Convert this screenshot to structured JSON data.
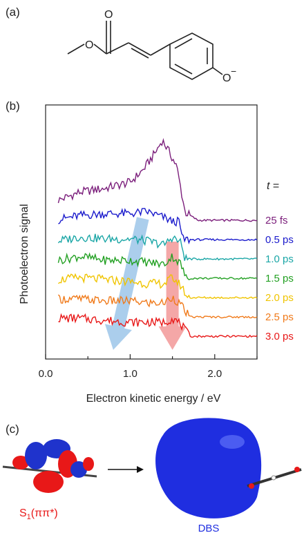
{
  "panels": {
    "a": "(a)",
    "b": "(b)",
    "c": "(c)"
  },
  "structure": {
    "o_minus_sup": "−",
    "atoms": [
      "O",
      "O",
      "O"
    ]
  },
  "chart_data": {
    "type": "line",
    "xlabel": "Electron kinetic energy / eV",
    "ylabel": "Photoelectron signal",
    "xlim": [
      0.0,
      2.5
    ],
    "xticks": [
      "0.0",
      "1.0",
      "2.0"
    ],
    "legend_title_italic": "t",
    "legend_title_rest": " =",
    "grid": false,
    "series": [
      {
        "name": "25 fs",
        "color": "#7b1e7b",
        "offset": 6,
        "x": [
          0.15,
          0.4,
          0.7,
          1.0,
          1.15,
          1.3,
          1.38,
          1.45,
          1.55,
          1.65,
          1.8,
          2.1,
          2.5
        ],
        "y": [
          0.55,
          0.75,
          0.85,
          1.0,
          1.3,
          1.75,
          2.05,
          1.8,
          1.4,
          0.25,
          0.05,
          0.05,
          0.05
        ]
      },
      {
        "name": "0.5 ps",
        "color": "#1a1acc",
        "offset": 5,
        "x": [
          0.15,
          0.4,
          0.7,
          1.0,
          1.2,
          1.4,
          1.5,
          1.58,
          1.62,
          1.8,
          2.1,
          2.5
        ],
        "y": [
          0.55,
          0.65,
          0.7,
          0.7,
          0.75,
          0.6,
          0.5,
          0.5,
          0.05,
          0.05,
          0.05,
          0.05
        ]
      },
      {
        "name": "1.0 ps",
        "color": "#1aa6a6",
        "offset": 4,
        "x": [
          0.15,
          0.4,
          0.7,
          1.0,
          1.2,
          1.4,
          1.5,
          1.6,
          1.65,
          1.8,
          2.1,
          2.5
        ],
        "y": [
          0.5,
          0.6,
          0.55,
          0.55,
          0.5,
          0.4,
          0.6,
          0.45,
          0.05,
          0.05,
          0.05,
          0.05
        ]
      },
      {
        "name": "1.5 ps",
        "color": "#22a022",
        "offset": 3,
        "x": [
          0.15,
          0.4,
          0.7,
          1.0,
          1.2,
          1.4,
          1.5,
          1.6,
          1.66,
          1.8,
          2.1,
          2.5
        ],
        "y": [
          0.5,
          0.6,
          0.5,
          0.5,
          0.45,
          0.4,
          0.6,
          0.4,
          0.05,
          0.05,
          0.05,
          0.05
        ]
      },
      {
        "name": "2.0 ps",
        "color": "#f0c400",
        "offset": 2,
        "x": [
          0.15,
          0.4,
          0.7,
          1.0,
          1.2,
          1.4,
          1.5,
          1.6,
          1.68,
          1.8,
          2.1,
          2.5
        ],
        "y": [
          0.5,
          0.55,
          0.5,
          0.45,
          0.4,
          0.4,
          0.55,
          0.35,
          0.05,
          0.05,
          0.05,
          0.05
        ]
      },
      {
        "name": "2.5 ps",
        "color": "#f07a1a",
        "offset": 1,
        "x": [
          0.15,
          0.4,
          0.7,
          1.0,
          1.2,
          1.4,
          1.5,
          1.6,
          1.7,
          1.8,
          2.1,
          2.5
        ],
        "y": [
          0.5,
          0.5,
          0.45,
          0.45,
          0.4,
          0.4,
          0.55,
          0.35,
          0.05,
          0.05,
          0.05,
          0.05
        ]
      },
      {
        "name": "3.0 ps",
        "color": "#e81818",
        "offset": 0,
        "x": [
          0.15,
          0.4,
          0.7,
          1.0,
          1.2,
          1.4,
          1.5,
          1.6,
          1.7,
          1.8,
          2.1,
          2.5
        ],
        "y": [
          0.5,
          0.5,
          0.45,
          0.4,
          0.4,
          0.4,
          0.5,
          0.35,
          0.05,
          0.05,
          0.05,
          0.05
        ]
      }
    ],
    "arrows": [
      {
        "color": "#8fbde6",
        "from": [
          1.15,
          6.2
        ],
        "to": [
          0.8,
          -0.6
        ]
      },
      {
        "color": "#f08a8a",
        "from": [
          1.5,
          5.0
        ],
        "to": [
          1.5,
          -0.6
        ]
      }
    ]
  },
  "orbitals": {
    "left_label_main": "S",
    "left_label_sub": "1",
    "left_label_rest": "(ππ*)",
    "right_label": "DBS",
    "colors": {
      "positive": "#e81818",
      "negative": "#1f33cc",
      "dbs": "#1f2ee0"
    }
  }
}
